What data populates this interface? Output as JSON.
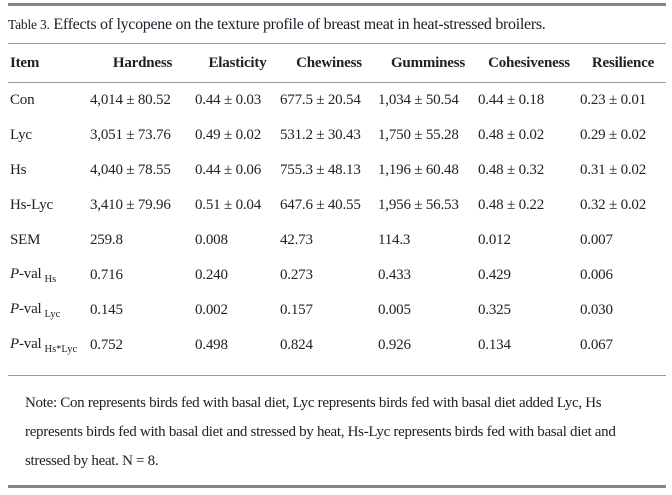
{
  "title": {
    "label": "Table 3.",
    "caption": "Effects of lycopene on the texture profile of breast meat in heat-stressed broilers."
  },
  "table": {
    "columns": [
      "Item",
      "Hardness",
      "Elasticity",
      "Chewiness",
      "Gumminess",
      "Cohesiveness",
      "Resilience"
    ],
    "rows": [
      {
        "italic_prefix": "",
        "label": "Con",
        "sub": "",
        "cells": [
          "4,014 ± 80.52",
          "0.44 ± 0.03",
          "677.5 ± 20.54",
          "1,034 ± 50.54",
          "0.44 ± 0.18",
          "0.23 ± 0.01"
        ]
      },
      {
        "italic_prefix": "",
        "label": "Lyc",
        "sub": "",
        "cells": [
          "3,051 ± 73.76",
          "0.49 ± 0.02",
          "531.2 ± 30.43",
          "1,750 ± 55.28",
          "0.48 ± 0.02",
          "0.29 ± 0.02"
        ]
      },
      {
        "italic_prefix": "",
        "label": "Hs",
        "sub": "",
        "cells": [
          "4,040 ± 78.55",
          "0.44 ± 0.06",
          "755.3 ± 48.13",
          "1,196 ± 60.48",
          "0.48 ± 0.32",
          "0.31 ± 0.02"
        ]
      },
      {
        "italic_prefix": "",
        "label": "Hs-Lyc",
        "sub": "",
        "cells": [
          "3,410 ± 79.96",
          "0.51 ± 0.04",
          "647.6 ± 40.55",
          "1,956 ± 56.53",
          "0.48 ± 0.22",
          "0.32 ± 0.02"
        ]
      },
      {
        "italic_prefix": "",
        "label": "SEM",
        "sub": "",
        "cells": [
          "259.8",
          "0.008",
          "42.73",
          "114.3",
          "0.012",
          "0.007"
        ]
      },
      {
        "italic_prefix": "P",
        "label": "-val",
        "sub": "Hs",
        "cells": [
          "0.716",
          "0.240",
          "0.273",
          "0.433",
          "0.429",
          "0.006"
        ]
      },
      {
        "italic_prefix": "P",
        "label": "-val",
        "sub": "Lyc",
        "cells": [
          "0.145",
          "0.002",
          "0.157",
          "0.005",
          "0.325",
          "0.030"
        ]
      },
      {
        "italic_prefix": "P",
        "label": "-val",
        "sub": "Hs*Lyc",
        "cells": [
          "0.752",
          "0.498",
          "0.824",
          "0.926",
          "0.134",
          "0.067"
        ]
      }
    ]
  },
  "note": "Note: Con represents birds fed with basal diet, Lyc represents birds fed with basal diet added Lyc, Hs represents birds fed with basal diet and stressed by heat, Hs-Lyc represents birds fed with basal diet and stressed by heat. N = 8."
}
